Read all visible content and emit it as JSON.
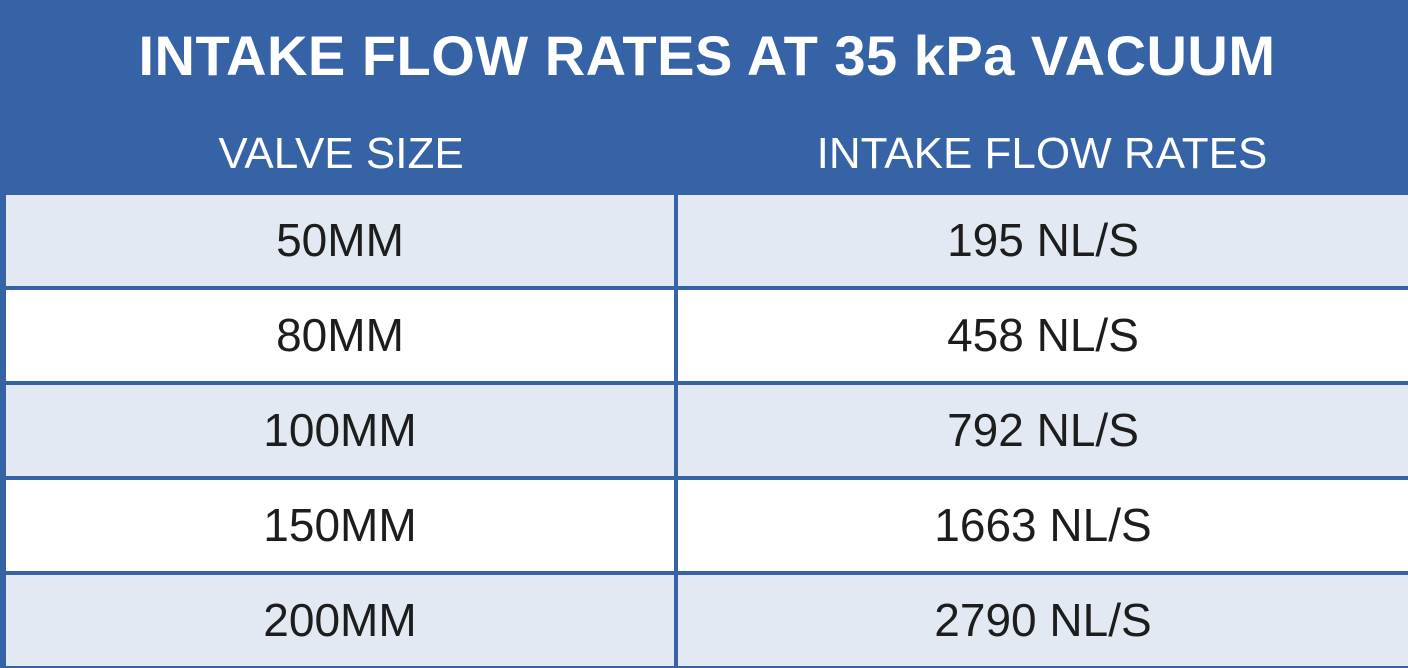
{
  "table": {
    "title": "INTAKE FLOW RATES AT 35 kPa VACUUM",
    "columns": [
      "VALVE SIZE",
      "INTAKE FLOW RATES"
    ],
    "rows": [
      {
        "valve_size": "50MM",
        "flow_rate": "195 NL/S"
      },
      {
        "valve_size": "80MM",
        "flow_rate": "458 NL/S"
      },
      {
        "valve_size": "100MM",
        "flow_rate": "792 NL/S"
      },
      {
        "valve_size": "150MM",
        "flow_rate": "1663 NL/S"
      },
      {
        "valve_size": "200MM",
        "flow_rate": "2790 NL/S"
      }
    ]
  },
  "colors": {
    "header_bg": "#3563a6",
    "header_text": "#ffffff",
    "row_alt_bg": "#e3e9f2",
    "row_bg": "#ffffff",
    "border": "#3563a6",
    "cell_text": "#1d1d1d"
  }
}
